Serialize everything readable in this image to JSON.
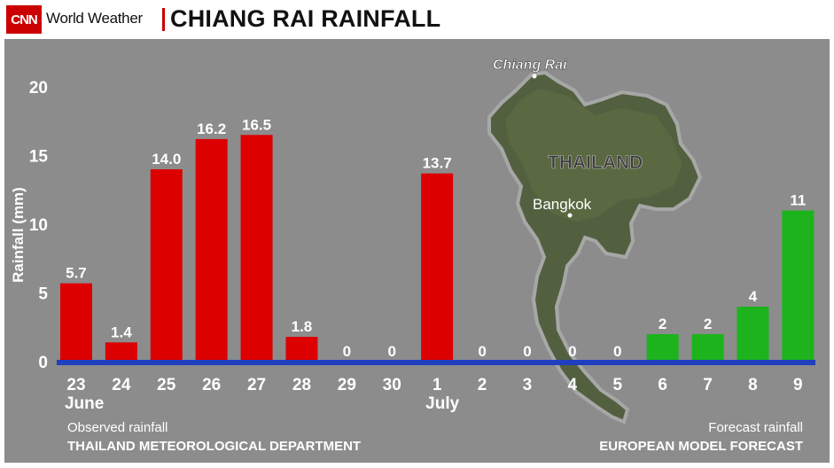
{
  "header": {
    "logo": "CNN",
    "brand": "World Weather",
    "title": "CHIANG RAI RAINFALL"
  },
  "map": {
    "labels": {
      "city": "Chiang Rai",
      "country": "THAILAND",
      "capital": "Bangkok"
    }
  },
  "footer": {
    "observed_title": "Observed rainfall",
    "observed_source": "THAILAND METEOROLOGICAL DEPARTMENT",
    "forecast_title": "Forecast rainfall",
    "forecast_source": "EUROPEAN MODEL FORECAST"
  },
  "colors": {
    "observed": "#dd0000",
    "forecast": "#1db31d",
    "baseline": "#1f3fbf",
    "panel": "#8c8c8c"
  },
  "chart_data": {
    "type": "bar",
    "title": "CHIANG RAI RAINFALL",
    "ylabel": "Rainfall (mm)",
    "xlabel": "",
    "ylim": [
      0,
      20
    ],
    "yticks": [
      0,
      5,
      10,
      15,
      20
    ],
    "grid": false,
    "categories": [
      "23",
      "24",
      "25",
      "26",
      "27",
      "28",
      "29",
      "30",
      "1",
      "2",
      "3",
      "4",
      "5",
      "6",
      "7",
      "8",
      "9"
    ],
    "month_labels": [
      {
        "text": "June",
        "category": "23"
      },
      {
        "text": "July",
        "category": "1"
      }
    ],
    "series": [
      {
        "name": "Observed rainfall",
        "values": [
          5.7,
          1.4,
          14.0,
          16.2,
          16.5,
          1.8,
          0,
          0,
          13.7,
          0,
          0,
          0,
          0,
          null,
          null,
          null,
          null
        ],
        "labels": [
          "5.7",
          "1.4",
          "14.0",
          "16.2",
          "16.5",
          "1.8",
          "0",
          "0",
          "13.7",
          "0",
          "0",
          "0",
          "0",
          "",
          "",
          "",
          ""
        ]
      },
      {
        "name": "Forecast rainfall",
        "values": [
          null,
          null,
          null,
          null,
          null,
          null,
          null,
          null,
          null,
          null,
          null,
          null,
          null,
          2,
          2,
          4,
          11
        ],
        "labels": [
          "",
          "",
          "",
          "",
          "",
          "",
          "",
          "",
          "",
          "",
          "",
          "",
          "",
          "2",
          "2",
          "4",
          "11"
        ]
      }
    ]
  }
}
